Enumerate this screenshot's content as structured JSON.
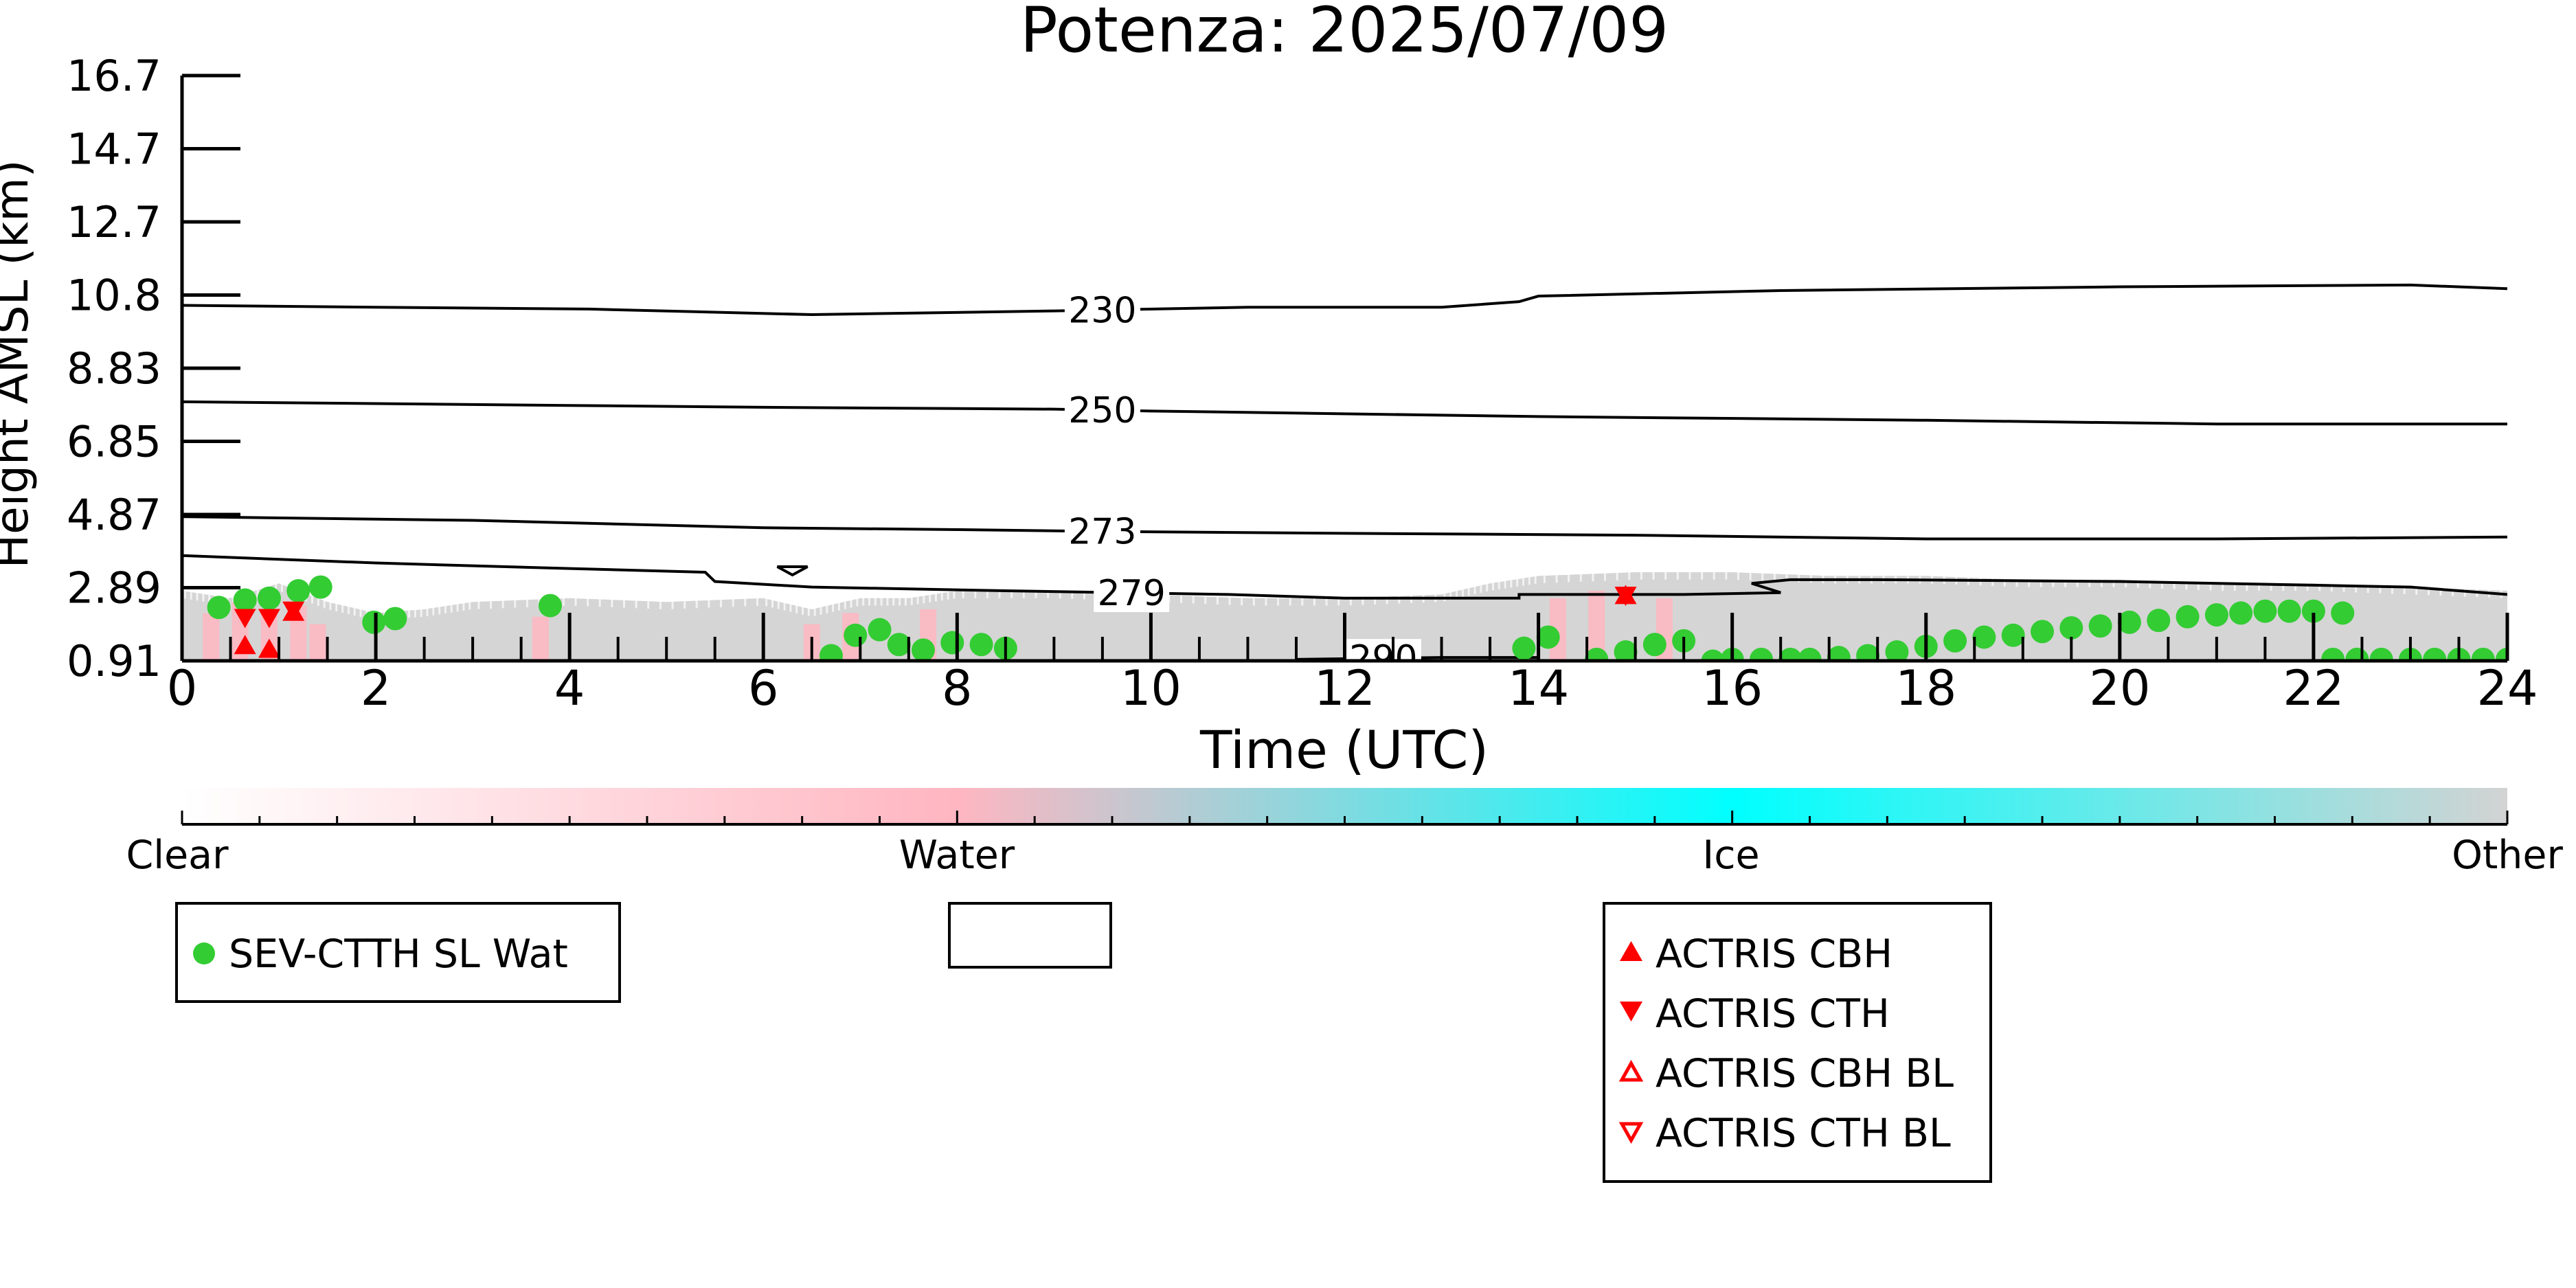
{
  "colors": {
    "clear": "#ffffff",
    "water": "#ffb6c1",
    "ice": "#00ffff",
    "other": "#d3d3d3",
    "sev_wat": "#33cc33",
    "actris": "#ff0000",
    "contour": "#000000"
  },
  "chart_data": {
    "type": "scatter",
    "title": "Potenza: 2025/07/09",
    "xlabel": "Time (UTC)",
    "ylabel": "Height AMSL (km)",
    "xlim": [
      0,
      24
    ],
    "ylim": [
      0.91,
      16.7
    ],
    "x_ticks": [
      "0",
      "2",
      "4",
      "6",
      "8",
      "10",
      "12",
      "14",
      "16",
      "18",
      "20",
      "22",
      "24"
    ],
    "y_ticks": [
      "0.91",
      "2.89",
      "4.87",
      "6.85",
      "8.83",
      "10.8",
      "12.7",
      "14.7",
      "16.7"
    ],
    "colorbar": {
      "labels": [
        "Clear",
        "Water",
        "Ice",
        "Other"
      ]
    },
    "legends": {
      "sev": [
        "SEV-CTTH SL Wat"
      ],
      "actris": [
        "ACTRIS CBH",
        "ACTRIS CTH",
        "ACTRIS CBH BL",
        "ACTRIS CTH BL"
      ]
    },
    "contours": [
      {
        "label": "230",
        "label_x": 9.5,
        "points": [
          [
            0,
            10.5
          ],
          [
            2,
            10.45
          ],
          [
            4.2,
            10.4
          ],
          [
            6.5,
            10.25
          ],
          [
            9,
            10.35
          ],
          [
            11,
            10.45
          ],
          [
            13,
            10.45
          ],
          [
            13.8,
            10.6
          ],
          [
            14,
            10.75
          ],
          [
            16.5,
            10.9
          ],
          [
            20,
            11.0
          ],
          [
            23,
            11.05
          ],
          [
            24,
            10.95
          ]
        ]
      },
      {
        "label": "250",
        "label_x": 9.5,
        "points": [
          [
            0,
            7.9
          ],
          [
            4,
            7.8
          ],
          [
            6,
            7.75
          ],
          [
            9,
            7.7
          ],
          [
            10,
            7.65
          ],
          [
            14,
            7.5
          ],
          [
            18,
            7.4
          ],
          [
            21,
            7.3
          ],
          [
            24,
            7.3
          ]
        ]
      },
      {
        "label": "273",
        "label_x": 9.5,
        "points": [
          [
            0,
            4.8
          ],
          [
            3,
            4.7
          ],
          [
            6,
            4.5
          ],
          [
            8,
            4.45
          ],
          [
            9.5,
            4.4
          ],
          [
            12,
            4.35
          ],
          [
            15,
            4.3
          ],
          [
            18,
            4.2
          ],
          [
            21,
            4.2
          ],
          [
            24,
            4.25
          ]
        ]
      },
      {
        "label": "279",
        "label_x": 9.8,
        "points": [
          [
            0,
            3.75
          ],
          [
            2,
            3.55
          ],
          [
            4,
            3.4
          ],
          [
            5.4,
            3.3
          ],
          [
            5.5,
            3.05
          ],
          [
            6.5,
            2.9
          ],
          [
            8.5,
            2.8
          ],
          [
            10.8,
            2.7
          ],
          [
            12,
            2.6
          ],
          [
            13.8,
            2.6
          ],
          [
            13.8,
            2.7
          ],
          [
            15.5,
            2.7
          ],
          [
            16.5,
            2.75
          ],
          [
            16.2,
            3.0
          ],
          [
            16.6,
            3.1
          ],
          [
            17.5,
            3.1
          ],
          [
            20,
            3.05
          ],
          [
            22,
            2.95
          ],
          [
            23,
            2.9
          ],
          [
            24,
            2.7
          ]
        ]
      },
      {
        "label": "290",
        "label_x": 12.4,
        "points": [
          [
            11.5,
            0.95
          ],
          [
            13,
            1.0
          ],
          [
            14,
            1.0
          ]
        ]
      }
    ],
    "contour_loop": {
      "x": 6.3,
      "y": 3.45
    },
    "clutter_hi": [
      [
        0,
        2.8
      ],
      [
        0.5,
        2.6
      ],
      [
        1,
        3.0
      ],
      [
        1.5,
        2.5
      ],
      [
        2,
        2.2
      ],
      [
        2.5,
        2.3
      ],
      [
        3,
        2.5
      ],
      [
        4,
        2.6
      ],
      [
        5,
        2.5
      ],
      [
        6,
        2.6
      ],
      [
        6.5,
        2.3
      ],
      [
        7,
        2.6
      ],
      [
        7.5,
        2.6
      ],
      [
        8,
        2.8
      ],
      [
        9,
        2.8
      ],
      [
        10,
        2.7
      ],
      [
        11,
        2.6
      ],
      [
        12,
        2.6
      ],
      [
        13,
        2.7
      ],
      [
        13.5,
        3.0
      ],
      [
        14,
        3.2
      ],
      [
        15,
        3.3
      ],
      [
        16,
        3.3
      ],
      [
        17,
        3.2
      ],
      [
        18,
        3.2
      ],
      [
        19,
        3.1
      ],
      [
        20,
        3.1
      ],
      [
        21,
        3.0
      ],
      [
        22,
        3.0
      ],
      [
        23,
        2.9
      ],
      [
        24,
        2.8
      ]
    ],
    "clutter_lo": [
      [
        0,
        2.4
      ],
      [
        1,
        2.2
      ],
      [
        2,
        2.0
      ],
      [
        3,
        2.1
      ],
      [
        4,
        2.2
      ],
      [
        5,
        2.1
      ],
      [
        6,
        2.1
      ],
      [
        6.5,
        1.8
      ],
      [
        7,
        2.1
      ],
      [
        8,
        2.3
      ],
      [
        9,
        2.4
      ],
      [
        10,
        2.4
      ],
      [
        11,
        2.3
      ],
      [
        12,
        2.2
      ],
      [
        13,
        2.3
      ],
      [
        14,
        2.6
      ],
      [
        15,
        2.7
      ],
      [
        16,
        2.8
      ],
      [
        17,
        2.9
      ],
      [
        18,
        2.8
      ],
      [
        19,
        2.8
      ],
      [
        20,
        2.7
      ],
      [
        21,
        2.6
      ],
      [
        22,
        2.6
      ],
      [
        23,
        2.5
      ],
      [
        24,
        2.4
      ]
    ],
    "water_points": [
      [
        0.3,
        2.2
      ],
      [
        0.6,
        2.5
      ],
      [
        0.9,
        2.3
      ],
      [
        1.2,
        2.4
      ],
      [
        1.4,
        1.9
      ],
      [
        3.7,
        2.1
      ],
      [
        6.5,
        1.9
      ],
      [
        6.9,
        2.2
      ],
      [
        7.7,
        2.3
      ],
      [
        14.2,
        2.6
      ],
      [
        14.6,
        2.8
      ],
      [
        15.3,
        2.6
      ]
    ],
    "sev_wat": [
      [
        0.38,
        2.35
      ],
      [
        0.65,
        2.55
      ],
      [
        0.9,
        2.6
      ],
      [
        1.2,
        2.8
      ],
      [
        1.43,
        2.9
      ],
      [
        1.98,
        1.95
      ],
      [
        2.2,
        2.05
      ],
      [
        3.8,
        2.4
      ],
      [
        6.7,
        1.05
      ],
      [
        6.95,
        1.6
      ],
      [
        7.2,
        1.75
      ],
      [
        7.4,
        1.35
      ],
      [
        7.65,
        1.2
      ],
      [
        7.95,
        1.4
      ],
      [
        8.25,
        1.35
      ],
      [
        8.5,
        1.25
      ],
      [
        13.85,
        1.25
      ],
      [
        14.1,
        1.55
      ],
      [
        14.6,
        0.95
      ],
      [
        14.9,
        1.15
      ],
      [
        15.2,
        1.35
      ],
      [
        15.5,
        1.45
      ],
      [
        15.8,
        0.9
      ],
      [
        16.0,
        0.95
      ],
      [
        16.3,
        0.95
      ],
      [
        16.6,
        0.95
      ],
      [
        16.8,
        0.95
      ],
      [
        17.1,
        1.0
      ],
      [
        17.4,
        1.05
      ],
      [
        17.7,
        1.15
      ],
      [
        18.0,
        1.3
      ],
      [
        18.3,
        1.45
      ],
      [
        18.6,
        1.55
      ],
      [
        18.9,
        1.6
      ],
      [
        19.2,
        1.7
      ],
      [
        19.5,
        1.8
      ],
      [
        19.8,
        1.85
      ],
      [
        20.1,
        1.95
      ],
      [
        20.4,
        2.0
      ],
      [
        20.7,
        2.1
      ],
      [
        21.0,
        2.15
      ],
      [
        21.25,
        2.2
      ],
      [
        21.5,
        2.25
      ],
      [
        21.75,
        2.25
      ],
      [
        22.0,
        2.25
      ],
      [
        22.3,
        2.2
      ],
      [
        22.2,
        0.95
      ],
      [
        22.45,
        0.95
      ],
      [
        22.7,
        0.95
      ],
      [
        23.0,
        0.95
      ],
      [
        23.25,
        0.95
      ],
      [
        23.5,
        0.95
      ],
      [
        23.75,
        0.95
      ],
      [
        24.0,
        0.95
      ]
    ],
    "actris_cbh": [
      [
        0.65,
        1.35
      ],
      [
        0.9,
        1.25
      ],
      [
        1.15,
        2.25
      ],
      [
        14.9,
        2.7
      ]
    ],
    "actris_cth": [
      [
        0.65,
        2.05
      ],
      [
        0.9,
        2.05
      ],
      [
        1.15,
        2.25
      ],
      [
        14.9,
        2.65
      ]
    ]
  }
}
